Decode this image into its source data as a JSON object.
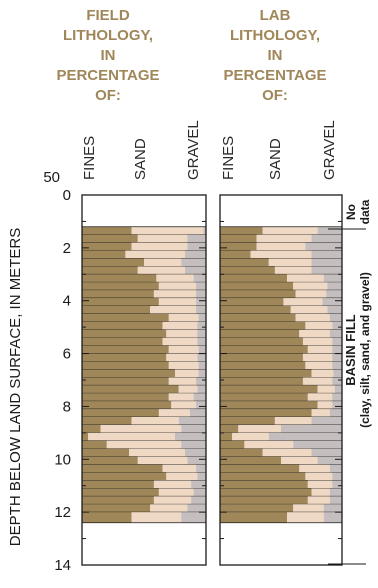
{
  "chart_data": {
    "type": "bar",
    "orientation": "horizontal-stacked",
    "y_axis": {
      "label": "DEPTH BELOW LAND SURFACE, IN METERS",
      "ticks": [
        "0",
        "2",
        "4",
        "6",
        "8",
        "10",
        "12",
        "14"
      ],
      "range": [
        0,
        14
      ],
      "top_label": "50"
    },
    "panels": [
      {
        "title": [
          "FIELD",
          "LITHOLOGY,",
          "IN",
          "PERCENTAGE",
          "OF:"
        ],
        "columns": [
          "FINES",
          "SAND",
          "GRAVEL"
        ],
        "intervals": [
          {
            "top": 1.2,
            "bottom": 1.5,
            "fines": 40,
            "sand": 58,
            "gravel": 2
          },
          {
            "top": 1.5,
            "bottom": 1.8,
            "fines": 45,
            "sand": 40,
            "gravel": 15
          },
          {
            "top": 1.8,
            "bottom": 2.1,
            "fines": 40,
            "sand": 45,
            "gravel": 15
          },
          {
            "top": 2.1,
            "bottom": 2.4,
            "fines": 35,
            "sand": 48,
            "gravel": 17
          },
          {
            "top": 2.4,
            "bottom": 2.7,
            "fines": 50,
            "sand": 30,
            "gravel": 20
          },
          {
            "top": 2.7,
            "bottom": 3.0,
            "fines": 45,
            "sand": 38,
            "gravel": 17
          },
          {
            "top": 3.0,
            "bottom": 3.3,
            "fines": 60,
            "sand": 30,
            "gravel": 10
          },
          {
            "top": 3.3,
            "bottom": 3.6,
            "fines": 62,
            "sand": 30,
            "gravel": 8
          },
          {
            "top": 3.6,
            "bottom": 3.9,
            "fines": 58,
            "sand": 34,
            "gravel": 8
          },
          {
            "top": 3.9,
            "bottom": 4.2,
            "fines": 62,
            "sand": 30,
            "gravel": 8
          },
          {
            "top": 4.2,
            "bottom": 4.5,
            "fines": 55,
            "sand": 37,
            "gravel": 8
          },
          {
            "top": 4.5,
            "bottom": 4.8,
            "fines": 70,
            "sand": 24,
            "gravel": 6
          },
          {
            "top": 4.8,
            "bottom": 5.1,
            "fines": 65,
            "sand": 28,
            "gravel": 7
          },
          {
            "top": 5.1,
            "bottom": 5.4,
            "fines": 68,
            "sand": 25,
            "gravel": 7
          },
          {
            "top": 5.4,
            "bottom": 5.7,
            "fines": 65,
            "sand": 28,
            "gravel": 7
          },
          {
            "top": 5.7,
            "bottom": 6.0,
            "fines": 70,
            "sand": 24,
            "gravel": 6
          },
          {
            "top": 6.0,
            "bottom": 6.3,
            "fines": 68,
            "sand": 25,
            "gravel": 7
          },
          {
            "top": 6.3,
            "bottom": 6.6,
            "fines": 70,
            "sand": 24,
            "gravel": 6
          },
          {
            "top": 6.6,
            "bottom": 6.9,
            "fines": 75,
            "sand": 19,
            "gravel": 6
          },
          {
            "top": 6.9,
            "bottom": 7.2,
            "fines": 70,
            "sand": 22,
            "gravel": 8
          },
          {
            "top": 7.2,
            "bottom": 7.5,
            "fines": 78,
            "sand": 15,
            "gravel": 7
          },
          {
            "top": 7.5,
            "bottom": 7.8,
            "fines": 70,
            "sand": 20,
            "gravel": 10
          },
          {
            "top": 7.8,
            "bottom": 8.1,
            "fines": 72,
            "sand": 20,
            "gravel": 8
          },
          {
            "top": 8.1,
            "bottom": 8.4,
            "fines": 62,
            "sand": 25,
            "gravel": 13
          },
          {
            "top": 8.4,
            "bottom": 8.7,
            "fines": 40,
            "sand": 38,
            "gravel": 22
          },
          {
            "top": 8.7,
            "bottom": 9.0,
            "fines": 15,
            "sand": 65,
            "gravel": 20
          },
          {
            "top": 9.0,
            "bottom": 9.3,
            "fines": 5,
            "sand": 70,
            "gravel": 25
          },
          {
            "top": 9.3,
            "bottom": 9.6,
            "fines": 20,
            "sand": 60,
            "gravel": 20
          },
          {
            "top": 9.6,
            "bottom": 9.9,
            "fines": 38,
            "sand": 45,
            "gravel": 17
          },
          {
            "top": 9.9,
            "bottom": 10.2,
            "fines": 45,
            "sand": 40,
            "gravel": 15
          },
          {
            "top": 10.2,
            "bottom": 10.5,
            "fines": 65,
            "sand": 27,
            "gravel": 8
          },
          {
            "top": 10.5,
            "bottom": 10.8,
            "fines": 68,
            "sand": 25,
            "gravel": 7
          },
          {
            "top": 10.8,
            "bottom": 11.1,
            "fines": 58,
            "sand": 30,
            "gravel": 12
          },
          {
            "top": 11.1,
            "bottom": 11.4,
            "fines": 62,
            "sand": 28,
            "gravel": 10
          },
          {
            "top": 11.4,
            "bottom": 11.7,
            "fines": 58,
            "sand": 30,
            "gravel": 12
          },
          {
            "top": 11.7,
            "bottom": 12.0,
            "fines": 55,
            "sand": 30,
            "gravel": 15
          },
          {
            "top": 12.0,
            "bottom": 12.4,
            "fines": 40,
            "sand": 40,
            "gravel": 20
          }
        ]
      },
      {
        "title": [
          "LAB",
          "LITHOLOGY,",
          "IN",
          "PERCENTAGE",
          "OF:"
        ],
        "columns": [
          "FINES",
          "SAND",
          "GRAVEL"
        ],
        "intervals": [
          {
            "top": 1.2,
            "bottom": 1.5,
            "fines": 35,
            "sand": 45,
            "gravel": 20
          },
          {
            "top": 1.5,
            "bottom": 1.8,
            "fines": 30,
            "sand": 45,
            "gravel": 25
          },
          {
            "top": 1.8,
            "bottom": 2.1,
            "fines": 30,
            "sand": 40,
            "gravel": 30
          },
          {
            "top": 2.1,
            "bottom": 2.4,
            "fines": 25,
            "sand": 50,
            "gravel": 25
          },
          {
            "top": 2.4,
            "bottom": 2.7,
            "fines": 40,
            "sand": 35,
            "gravel": 25
          },
          {
            "top": 2.7,
            "bottom": 3.0,
            "fines": 45,
            "sand": 30,
            "gravel": 25
          },
          {
            "top": 3.0,
            "bottom": 3.3,
            "fines": 55,
            "sand": 30,
            "gravel": 15
          },
          {
            "top": 3.3,
            "bottom": 3.6,
            "fines": 60,
            "sand": 28,
            "gravel": 12
          },
          {
            "top": 3.6,
            "bottom": 3.9,
            "fines": 62,
            "sand": 25,
            "gravel": 13
          },
          {
            "top": 3.9,
            "bottom": 4.2,
            "fines": 52,
            "sand": 32,
            "gravel": 16
          },
          {
            "top": 4.2,
            "bottom": 4.5,
            "fines": 58,
            "sand": 30,
            "gravel": 12
          },
          {
            "top": 4.5,
            "bottom": 4.8,
            "fines": 62,
            "sand": 28,
            "gravel": 10
          },
          {
            "top": 4.8,
            "bottom": 5.1,
            "fines": 70,
            "sand": 22,
            "gravel": 8
          },
          {
            "top": 5.1,
            "bottom": 5.4,
            "fines": 65,
            "sand": 25,
            "gravel": 10
          },
          {
            "top": 5.4,
            "bottom": 5.7,
            "fines": 68,
            "sand": 24,
            "gravel": 8
          },
          {
            "top": 5.7,
            "bottom": 6.0,
            "fines": 72,
            "sand": 20,
            "gravel": 8
          },
          {
            "top": 6.0,
            "bottom": 6.3,
            "fines": 68,
            "sand": 24,
            "gravel": 8
          },
          {
            "top": 6.3,
            "bottom": 6.6,
            "fines": 70,
            "sand": 22,
            "gravel": 8
          },
          {
            "top": 6.6,
            "bottom": 6.9,
            "fines": 75,
            "sand": 18,
            "gravel": 7
          },
          {
            "top": 6.9,
            "bottom": 7.2,
            "fines": 68,
            "sand": 24,
            "gravel": 8
          },
          {
            "top": 7.2,
            "bottom": 7.5,
            "fines": 80,
            "sand": 14,
            "gravel": 6
          },
          {
            "top": 7.5,
            "bottom": 7.8,
            "fines": 72,
            "sand": 20,
            "gravel": 8
          },
          {
            "top": 7.8,
            "bottom": 8.1,
            "fines": 80,
            "sand": 12,
            "gravel": 8
          },
          {
            "top": 8.1,
            "bottom": 8.4,
            "fines": 75,
            "sand": 15,
            "gravel": 10
          },
          {
            "top": 8.4,
            "bottom": 8.7,
            "fines": 45,
            "sand": 30,
            "gravel": 25
          },
          {
            "top": 8.7,
            "bottom": 9.0,
            "fines": 15,
            "sand": 35,
            "gravel": 50
          },
          {
            "top": 9.0,
            "bottom": 9.3,
            "fines": 10,
            "sand": 30,
            "gravel": 60
          },
          {
            "top": 9.3,
            "bottom": 9.6,
            "fines": 20,
            "sand": 40,
            "gravel": 40
          },
          {
            "top": 9.6,
            "bottom": 9.9,
            "fines": 35,
            "sand": 40,
            "gravel": 25
          },
          {
            "top": 9.9,
            "bottom": 10.2,
            "fines": 50,
            "sand": 30,
            "gravel": 20
          },
          {
            "top": 10.2,
            "bottom": 10.5,
            "fines": 65,
            "sand": 25,
            "gravel": 10
          },
          {
            "top": 10.5,
            "bottom": 10.8,
            "fines": 70,
            "sand": 22,
            "gravel": 8
          },
          {
            "top": 10.8,
            "bottom": 11.1,
            "fines": 72,
            "sand": 20,
            "gravel": 8
          },
          {
            "top": 11.1,
            "bottom": 11.4,
            "fines": 75,
            "sand": 15,
            "gravel": 10
          },
          {
            "top": 11.4,
            "bottom": 11.7,
            "fines": 72,
            "sand": 18,
            "gravel": 10
          },
          {
            "top": 11.7,
            "bottom": 12.0,
            "fines": 60,
            "sand": 25,
            "gravel": 15
          },
          {
            "top": 12.0,
            "bottom": 12.4,
            "fines": 55,
            "sand": 30,
            "gravel": 15
          }
        ]
      }
    ],
    "annotations": {
      "no_data": [
        "No",
        "data"
      ],
      "unit_label": "BASIN FILL",
      "unit_sublabel": "(clay, silt, sand, and gravel)"
    },
    "colors": {
      "fines": "#a0875a",
      "sand": "#f0d9c4",
      "gravel": "#c4bebe",
      "header": "#a0875a",
      "frame": "#1a1a1a"
    }
  }
}
